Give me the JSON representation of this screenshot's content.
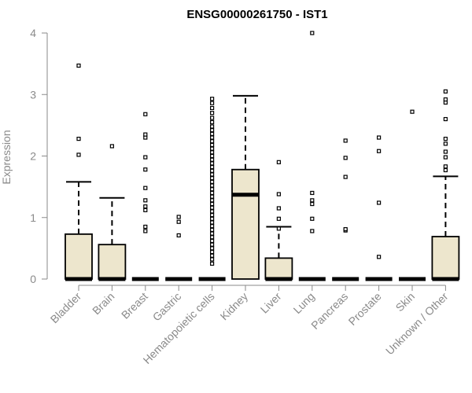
{
  "chart_data": {
    "type": "boxplot",
    "title": "ENSG00000261750 - IST1",
    "xlabel": "",
    "ylabel": "Expression",
    "ylim": [
      0,
      4
    ],
    "yticks": [
      "0",
      "1",
      "2",
      "3",
      "4"
    ],
    "box_fill": "#ede6cd",
    "categories": [
      "Bladder",
      "Brain",
      "Breast",
      "Gastric",
      "Hematopoietic cells",
      "Kidney",
      "Liver",
      "Lung",
      "Pancreas",
      "Prostate",
      "Skin",
      "Unknown / Other"
    ],
    "series": [
      {
        "name": "Bladder",
        "q1": 0,
        "median": 0,
        "q3": 0.73,
        "whisker_high": 1.58,
        "outliers": [
          2.02,
          2.28,
          3.47
        ]
      },
      {
        "name": "Brain",
        "q1": 0,
        "median": 0,
        "q3": 0.56,
        "whisker_high": 1.32,
        "outliers": [
          2.16
        ]
      },
      {
        "name": "Breast",
        "q1": 0,
        "median": 0,
        "q3": 0,
        "whisker_high": 0,
        "outliers": [
          0.78,
          0.85,
          1.12,
          1.18,
          1.28,
          1.48,
          1.78,
          1.98,
          2.3,
          2.35,
          2.68
        ]
      },
      {
        "name": "Gastric",
        "q1": 0,
        "median": 0,
        "q3": 0,
        "whisker_high": 0,
        "outliers": [
          0.71,
          0.93,
          1.01
        ]
      },
      {
        "name": "Hematopoietic cells",
        "q1": 0,
        "median": 0,
        "q3": 0,
        "whisker_high": 0,
        "outliers": [
          0.25,
          0.32,
          0.38,
          0.44,
          0.5,
          0.56,
          0.62,
          0.68,
          0.74,
          0.8,
          0.86,
          0.92,
          0.98,
          1.04,
          1.1,
          1.16,
          1.22,
          1.28,
          1.34,
          1.4,
          1.46,
          1.52,
          1.58,
          1.64,
          1.7,
          1.76,
          1.82,
          1.88,
          1.94,
          2.0,
          2.06,
          2.12,
          2.18,
          2.24,
          2.3,
          2.36,
          2.42,
          2.48,
          2.55,
          2.62,
          2.7,
          2.78,
          2.86,
          2.93
        ]
      },
      {
        "name": "Kidney",
        "q1": 0,
        "median": 1.37,
        "q3": 1.78,
        "whisker_high": 2.98,
        "outliers": []
      },
      {
        "name": "Liver",
        "q1": 0,
        "median": 0,
        "q3": 0.34,
        "whisker_high": 0.85,
        "outliers": [
          0.82,
          0.98,
          1.15,
          1.38,
          1.9
        ]
      },
      {
        "name": "Lung",
        "q1": 0,
        "median": 0,
        "q3": 0,
        "whisker_high": 0,
        "outliers": [
          0.78,
          0.98,
          1.22,
          1.28,
          1.4,
          4.0
        ]
      },
      {
        "name": "Pancreas",
        "q1": 0,
        "median": 0,
        "q3": 0,
        "whisker_high": 0,
        "outliers": [
          0.79,
          0.81,
          1.66,
          1.97,
          2.25
        ]
      },
      {
        "name": "Prostate",
        "q1": 0,
        "median": 0,
        "q3": 0,
        "whisker_high": 0,
        "outliers": [
          0.36,
          1.24,
          2.08,
          2.3
        ]
      },
      {
        "name": "Skin",
        "q1": 0,
        "median": 0,
        "q3": 0,
        "whisker_high": 0,
        "outliers": [
          2.72
        ]
      },
      {
        "name": "Unknown / Other",
        "q1": 0,
        "median": 0,
        "q3": 0.69,
        "whisker_high": 1.67,
        "outliers": [
          1.77,
          1.83,
          1.98,
          2.07,
          2.2,
          2.28,
          2.6,
          2.87,
          2.92,
          3.05
        ]
      }
    ]
  }
}
